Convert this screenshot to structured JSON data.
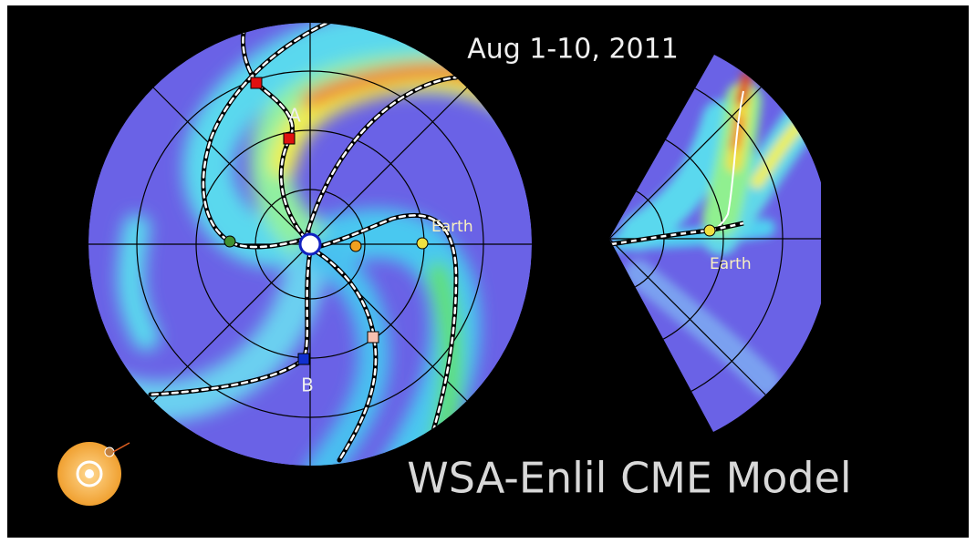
{
  "header": {
    "date": "Aug 1-10, 2011"
  },
  "markers": {
    "a": "A",
    "b": "B",
    "earth_left": "Earth",
    "earth_right": "Earth"
  },
  "footer": {
    "title": "WSA-Enlil CME Model"
  }
}
